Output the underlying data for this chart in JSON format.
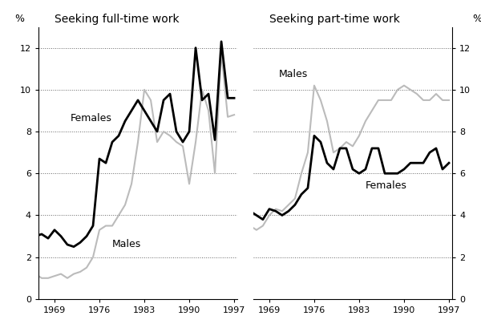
{
  "title_left": "Seeking full-time work",
  "title_right": "Seeking part-time work",
  "percent_label": "%",
  "ylim": [
    0,
    13
  ],
  "yticks": [
    0,
    2,
    4,
    6,
    8,
    10,
    12
  ],
  "xlim": [
    1966.5,
    1997.5
  ],
  "xticks": [
    1969,
    1976,
    1983,
    1990,
    1997
  ],
  "full_time": {
    "years": [
      1966,
      1967,
      1968,
      1969,
      1970,
      1971,
      1972,
      1973,
      1974,
      1975,
      1976,
      1977,
      1978,
      1979,
      1980,
      1981,
      1982,
      1983,
      1984,
      1985,
      1986,
      1987,
      1988,
      1989,
      1990,
      1991,
      1992,
      1993,
      1994,
      1995,
      1996,
      1997
    ],
    "females": [
      3.0,
      3.1,
      2.9,
      3.3,
      3.0,
      2.6,
      2.5,
      2.7,
      3.0,
      3.5,
      6.7,
      6.5,
      7.5,
      7.8,
      8.5,
      9.0,
      9.5,
      9.0,
      8.5,
      8.0,
      9.5,
      9.8,
      8.0,
      7.5,
      8.0,
      12.0,
      9.5,
      9.8,
      7.6,
      12.3,
      9.6,
      9.6
    ],
    "males": [
      1.2,
      1.0,
      1.0,
      1.1,
      1.2,
      1.0,
      1.2,
      1.3,
      1.5,
      2.0,
      3.3,
      3.5,
      3.5,
      4.0,
      4.5,
      5.5,
      7.5,
      10.0,
      9.5,
      7.5,
      8.0,
      7.8,
      7.5,
      7.3,
      5.5,
      7.5,
      10.0,
      9.0,
      6.0,
      11.8,
      8.7,
      8.8
    ]
  },
  "part_time": {
    "years": [
      1966,
      1967,
      1968,
      1969,
      1970,
      1971,
      1972,
      1973,
      1974,
      1975,
      1976,
      1977,
      1978,
      1979,
      1980,
      1981,
      1982,
      1983,
      1984,
      1985,
      1986,
      1987,
      1988,
      1989,
      1990,
      1991,
      1992,
      1993,
      1994,
      1995,
      1996,
      1997
    ],
    "females": [
      4.2,
      4.0,
      3.8,
      4.3,
      4.2,
      4.0,
      4.2,
      4.5,
      5.0,
      5.3,
      7.8,
      7.5,
      6.5,
      6.2,
      7.2,
      7.2,
      6.2,
      6.0,
      6.2,
      7.2,
      7.2,
      6.0,
      6.0,
      6.0,
      6.2,
      6.5,
      6.5,
      6.5,
      7.0,
      7.2,
      6.2,
      6.5
    ],
    "males": [
      3.5,
      3.3,
      3.5,
      4.0,
      4.3,
      4.2,
      4.5,
      4.8,
      6.0,
      7.0,
      10.2,
      9.5,
      8.5,
      7.0,
      7.2,
      7.5,
      7.3,
      7.8,
      8.5,
      9.0,
      9.5,
      9.5,
      9.5,
      10.0,
      10.2,
      10.0,
      9.8,
      9.5,
      9.5,
      9.8,
      9.5,
      9.5
    ]
  },
  "female_color": "#000000",
  "male_color": "#bbbbbb",
  "female_linewidth": 2.0,
  "male_linewidth": 1.5,
  "grid_color": "#666666",
  "bg_color": "#ffffff",
  "fontsize_tick": 8,
  "fontsize_title": 10,
  "fontsize_label": 9
}
